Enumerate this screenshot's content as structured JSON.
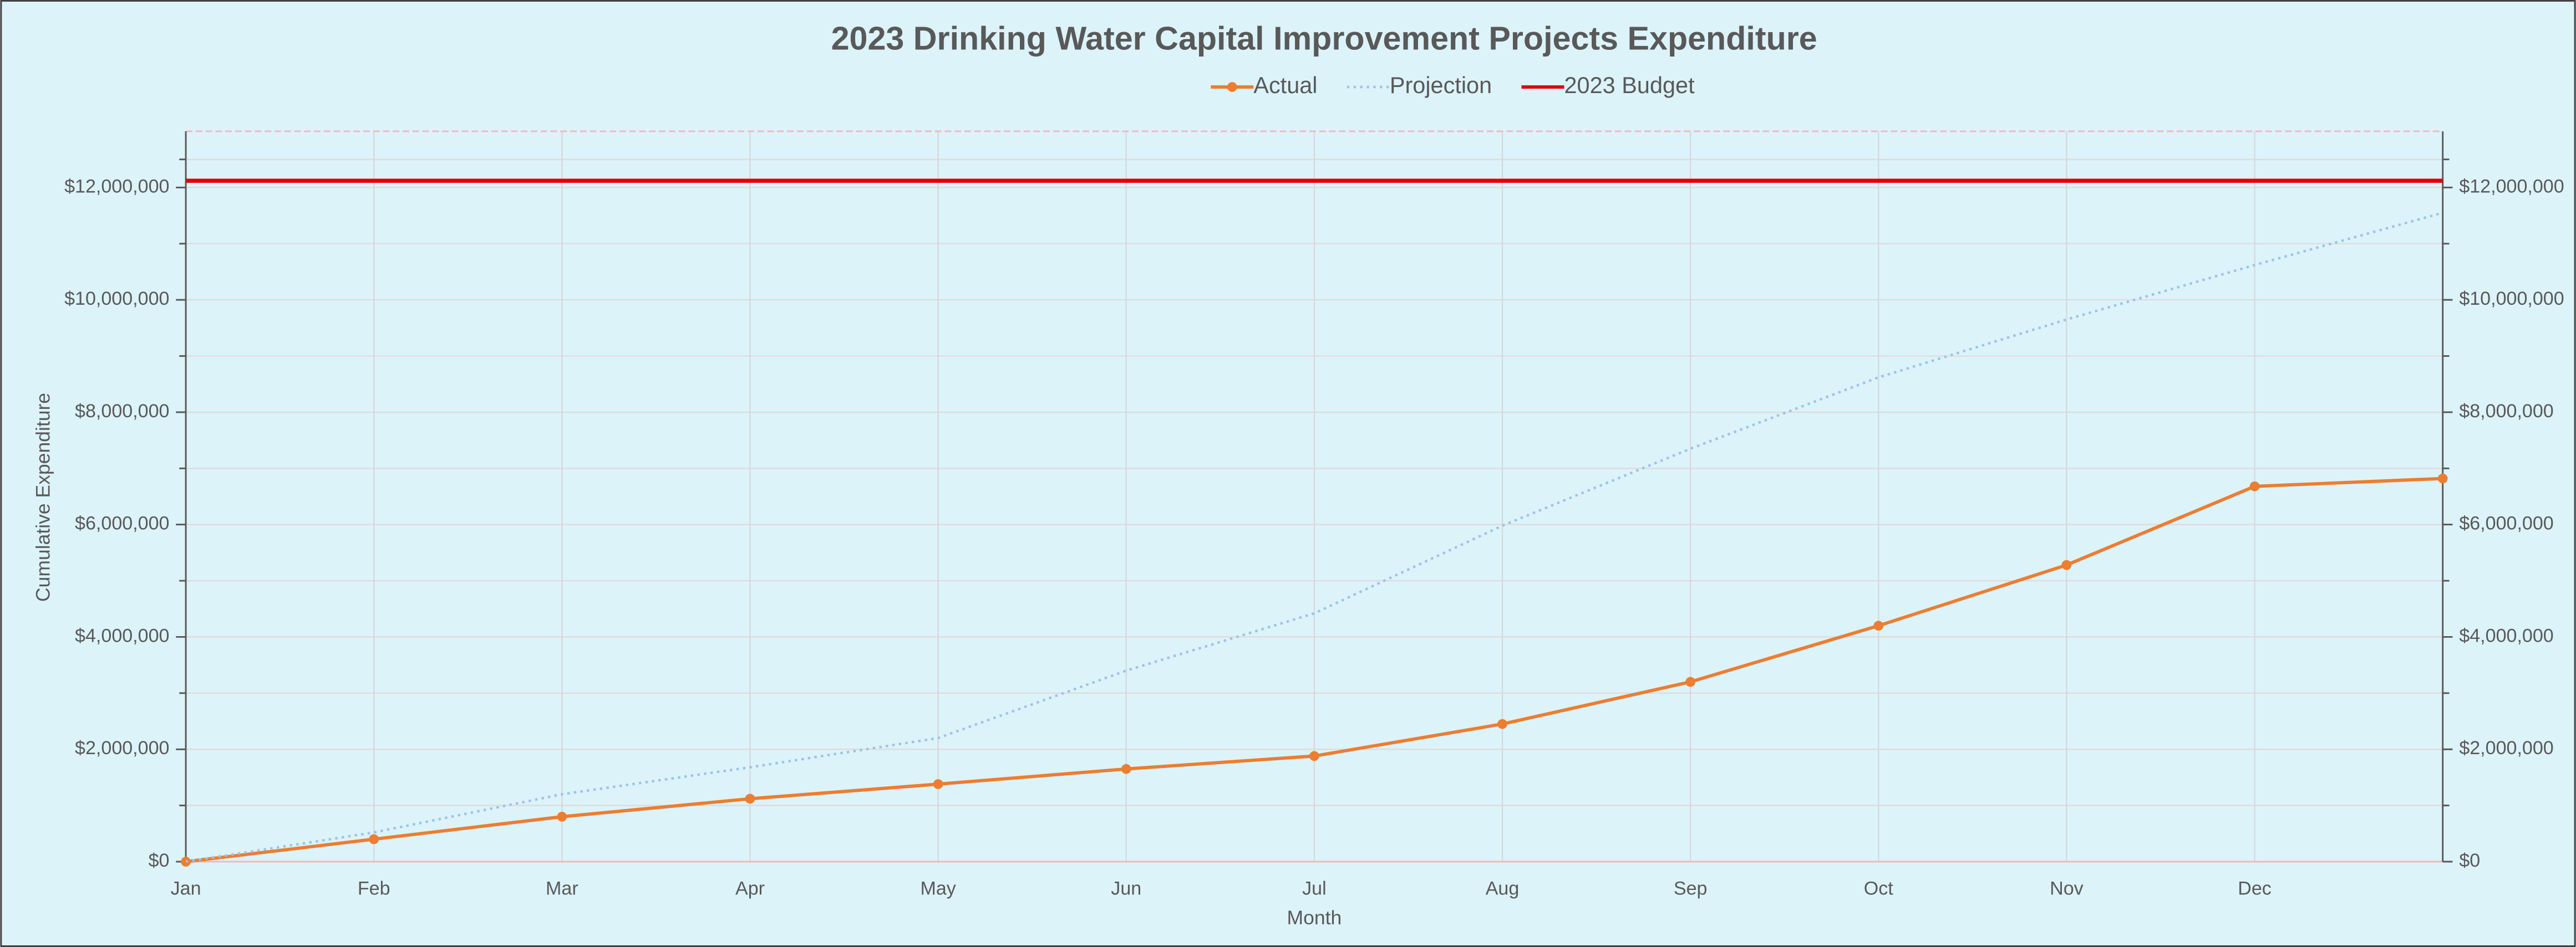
{
  "chart_data": {
    "type": "line",
    "title": "2023 Drinking Water Capital Improvement Projects Expenditure",
    "x_label": "Month",
    "y_label": "Cumulative Expenditure",
    "categories": [
      "Jan",
      "Feb",
      "Mar",
      "Apr",
      "May",
      "Jun",
      "Jul",
      "Aug",
      "Sep",
      "Oct",
      "Nov",
      "Dec",
      null
    ],
    "series": [
      {
        "name": "Actual",
        "color": "#ed7d31",
        "style": "solid-marker",
        "values": [
          0,
          400000,
          800000,
          1120000,
          1380000,
          1650000,
          1880000,
          2450000,
          3200000,
          4200000,
          5280000,
          6680000,
          6820000
        ]
      },
      {
        "name": "Projection",
        "color": "#9dc3e6",
        "style": "dotted",
        "values": [
          0,
          520000,
          1200000,
          1680000,
          2200000,
          3400000,
          4420000,
          5980000,
          7350000,
          8620000,
          9650000,
          10620000,
          11550000
        ]
      },
      {
        "name": "2023 Budget",
        "color": "#e00000",
        "style": "solid",
        "values": [
          12120000,
          12120000,
          12120000,
          12120000,
          12120000,
          12120000,
          12120000,
          12120000,
          12120000,
          12120000,
          12120000,
          12120000,
          12120000
        ]
      }
    ],
    "ylim": [
      0,
      13000000
    ],
    "yticks": [
      {
        "value": 0,
        "label": "$0"
      },
      {
        "value": 2000000,
        "label": "$2,000,000"
      },
      {
        "value": 4000000,
        "label": "$4,000,000"
      },
      {
        "value": 6000000,
        "label": "$6,000,000"
      },
      {
        "value": 8000000,
        "label": "$8,000,000"
      },
      {
        "value": 10000000,
        "label": "$10,000,000"
      },
      {
        "value": 12000000,
        "label": "$12,000,000"
      }
    ],
    "y2lim": [
      0,
      13000000
    ],
    "y2ticks": [
      {
        "value": 0,
        "label": "$0"
      },
      {
        "value": 2000000,
        "label": "$2,000,000"
      },
      {
        "value": 4000000,
        "label": "$4,000,000"
      },
      {
        "value": 6000000,
        "label": "$6,000,000"
      },
      {
        "value": 8000000,
        "label": "$8,000,000"
      },
      {
        "value": 10000000,
        "label": "$10,000,000"
      },
      {
        "value": 12000000,
        "label": "$12,000,000"
      }
    ],
    "grid": true,
    "legend": "top"
  }
}
